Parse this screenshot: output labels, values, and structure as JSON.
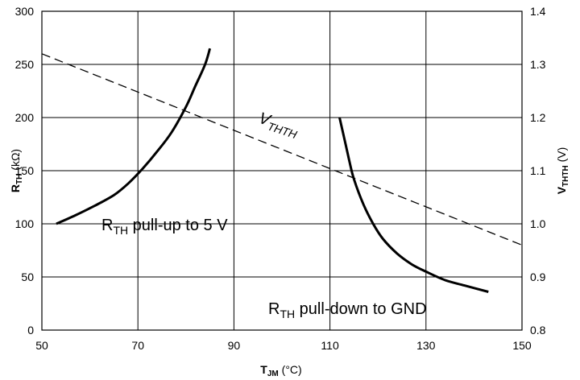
{
  "chart_data": {
    "type": "line",
    "title": "",
    "xlabel": {
      "main": "T",
      "sub": "JM",
      "unit": " (°C)"
    },
    "ylabel_left": {
      "main": "R",
      "sub": "TH",
      "unit": " (kΩ)"
    },
    "ylabel_right": {
      "main": "V",
      "sub": "THTH",
      "unit": " (V)"
    },
    "xlim": [
      50,
      150
    ],
    "ylim_left": [
      0,
      300
    ],
    "ylim_right": [
      0.8,
      1.4
    ],
    "x_ticks": [
      50,
      70,
      90,
      110,
      130,
      150
    ],
    "y_left_ticks": [
      0,
      50,
      100,
      150,
      200,
      250,
      300
    ],
    "y_right_ticks": [
      0.8,
      0.9,
      1.0,
      1.1,
      1.2,
      1.3,
      1.4
    ],
    "y_right_tick_labels": [
      "0.8",
      "0.9",
      "1.0",
      "1.1",
      "1.2",
      "1.3",
      "1.4"
    ],
    "grid": true,
    "series": [
      {
        "label_main": "R",
        "label_sub": "TH",
        "label_rest": " pull-up to 5 V",
        "axis": "left",
        "style": "solid",
        "x": [
          53,
          57,
          61,
          65,
          68,
          71,
          74,
          77,
          80,
          82,
          84,
          85
        ],
        "y": [
          100,
          108,
          117,
          127,
          138,
          152,
          168,
          186,
          210,
          230,
          250,
          265
        ]
      },
      {
        "label_main": "R",
        "label_sub": "TH",
        "label_rest": " pull-down to GND",
        "axis": "left",
        "style": "solid",
        "x": [
          112,
          113,
          114,
          115,
          117,
          119,
          121,
          124,
          127,
          130,
          134,
          138,
          143
        ],
        "y": [
          200,
          180,
          160,
          142,
          118,
          100,
          86,
          72,
          62,
          55,
          47,
          42,
          36
        ]
      },
      {
        "label_main": "V",
        "label_sub": "THTH",
        "label_rest": "",
        "axis": "right",
        "style": "dashed",
        "x": [
          50,
          150
        ],
        "y": [
          1.32,
          0.96
        ]
      }
    ]
  }
}
